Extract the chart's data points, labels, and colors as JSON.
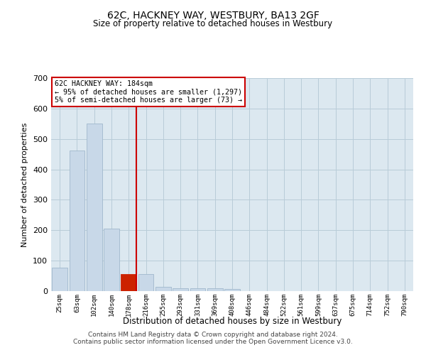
{
  "title": "62C, HACKNEY WAY, WESTBURY, BA13 2GF",
  "subtitle": "Size of property relative to detached houses in Westbury",
  "xlabel": "Distribution of detached houses by size in Westbury",
  "ylabel": "Number of detached properties",
  "bar_color": "#c8d8e8",
  "bar_edge_color": "#a0b8cc",
  "highlight_bar_color": "#cc2200",
  "highlight_bar_edge_color": "#cc2200",
  "vline_color": "#cc0000",
  "annotation_box_color": "#cc0000",
  "background_color": "#ffffff",
  "plot_bg_color": "#dce8f0",
  "grid_color": "#b8ccd8",
  "categories": [
    "25sqm",
    "63sqm",
    "102sqm",
    "140sqm",
    "178sqm",
    "216sqm",
    "255sqm",
    "293sqm",
    "331sqm",
    "369sqm",
    "408sqm",
    "446sqm",
    "484sqm",
    "522sqm",
    "561sqm",
    "599sqm",
    "637sqm",
    "675sqm",
    "714sqm",
    "752sqm",
    "790sqm"
  ],
  "values": [
    78,
    463,
    550,
    205,
    57,
    57,
    15,
    10,
    9,
    9,
    8,
    0,
    0,
    0,
    0,
    0,
    0,
    0,
    0,
    0,
    0
  ],
  "highlight_index": 4,
  "ylim": [
    0,
    700
  ],
  "yticks": [
    0,
    100,
    200,
    300,
    400,
    500,
    600,
    700
  ],
  "annotation_text": "62C HACKNEY WAY: 184sqm\n← 95% of detached houses are smaller (1,297)\n5% of semi-detached houses are larger (73) →",
  "footer_line1": "Contains HM Land Registry data © Crown copyright and database right 2024.",
  "footer_line2": "Contains public sector information licensed under the Open Government Licence v3.0."
}
